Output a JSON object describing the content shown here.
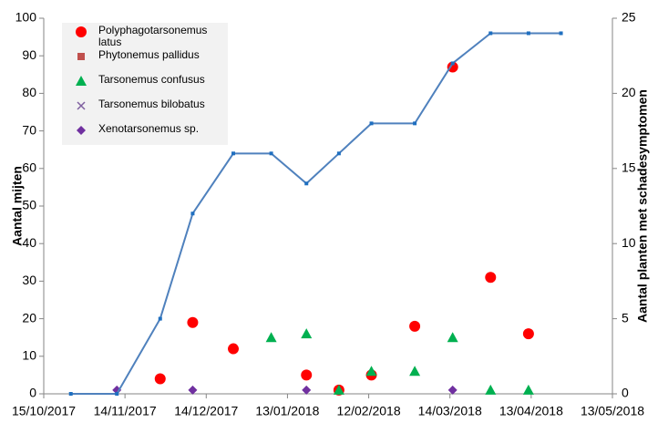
{
  "chart_data": {
    "type": "scatter",
    "xlim": [
      "15/10/2017",
      "13/05/2018"
    ],
    "xticks": [
      "15/10/2017",
      "14/11/2017",
      "14/12/2017",
      "13/01/2018",
      "12/02/2018",
      "14/03/2018",
      "13/04/2018",
      "13/05/2018"
    ],
    "ylim": [
      0,
      100
    ],
    "yticks": [
      0,
      10,
      20,
      30,
      40,
      50,
      60,
      70,
      80,
      90,
      100
    ],
    "y2lim": [
      0,
      25
    ],
    "y2ticks": [
      0,
      5,
      10,
      15,
      20,
      25
    ],
    "ylabel": "Aantal mijten",
    "y2label": "Aantal planten met schadesymptomen",
    "grid": false,
    "legend": "upper left",
    "series": [
      {
        "name": "Polyphagotarsonemus latus",
        "color": "#ff0000",
        "marker": "circle",
        "x": [
          "27/11/2017",
          "09/12/2017",
          "24/12/2017",
          "20/01/2018",
          "01/02/2018",
          "13/02/2018",
          "01/03/2018",
          "15/03/2018",
          "29/03/2018",
          "12/04/2018"
        ],
        "values": [
          4,
          19,
          12,
          5,
          1,
          5,
          18,
          87,
          31,
          16
        ]
      },
      {
        "name": "Phytonemus pallidus",
        "color": "#c0504d",
        "marker": "square",
        "x": [],
        "values": []
      },
      {
        "name": "Tarsonemus confusus",
        "color": "#00b050",
        "marker": "triangle",
        "x": [
          "07/01/2018",
          "20/01/2018",
          "01/02/2018",
          "13/02/2018",
          "01/03/2018",
          "15/03/2018",
          "29/03/2018",
          "12/04/2018"
        ],
        "values": [
          15,
          16,
          1,
          6,
          6,
          15,
          1,
          1
        ]
      },
      {
        "name": "Tarsonemus bilobatus",
        "color": "#7f60a0",
        "marker": "cross",
        "x": [],
        "values": []
      },
      {
        "name": "Xenotarsonemus sp.",
        "color": "#7030a0",
        "marker": "diamond",
        "x": [
          "11/11/2017",
          "09/12/2017",
          "20/01/2018",
          "15/03/2018"
        ],
        "values": [
          1,
          1,
          1,
          1
        ]
      },
      {
        "color": "#4f81bd",
        "marker": "line",
        "axis": "y2",
        "x": [
          "25/10/2017",
          "11/11/2017",
          "27/11/2017",
          "09/12/2017",
          "24/12/2017",
          "07/01/2018",
          "20/01/2018",
          "01/02/2018",
          "13/02/2018",
          "01/03/2018",
          "15/03/2018",
          "29/03/2018",
          "12/04/2018",
          "24/04/2018"
        ],
        "values": [
          0,
          0,
          5,
          12,
          16,
          16,
          14,
          16,
          18,
          18,
          22,
          24,
          24,
          24
        ]
      }
    ]
  }
}
